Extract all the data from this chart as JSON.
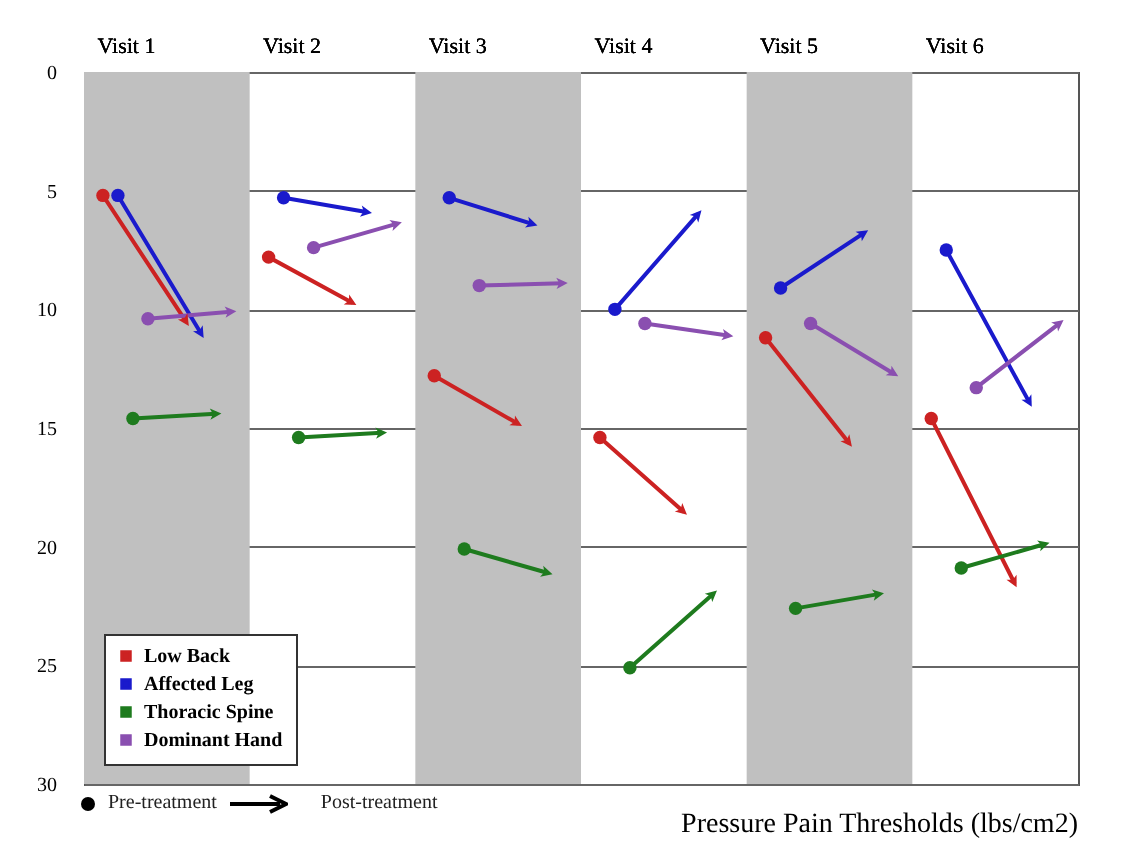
{
  "chart_data": {
    "type": "line",
    "xlabel": "Pressure Pain Thresholds (lbs/cm2)",
    "categories": [
      "Visit 1",
      null,
      "Visit 2",
      null,
      "Visit 3",
      null,
      "Visit 4",
      null,
      "Visit 5",
      null,
      "Visit 6",
      null
    ],
    "ylim": [
      30,
      0
    ],
    "yticks": [
      0,
      5,
      10,
      15,
      20,
      25,
      30
    ],
    "grid": "y",
    "legend": "bottom left",
    "marker": "circle",
    "line_style": "solid",
    "annotations": [
      "Pre-treatment",
      "Post-treatment"
    ],
    "series": [
      {
        "name": "Low Back",
        "color": "#cc2222",
        "values": [
          5.2,
          10.5,
          7.8,
          9.7,
          12.8,
          14.8,
          15.4,
          18.5,
          11.2,
          15.6,
          14.6,
          21.5
        ]
      },
      {
        "name": "Affected Leg",
        "color": "#1a1acc",
        "values": [
          5.2,
          11.0,
          5.3,
          5.9,
          5.3,
          6.4,
          10.0,
          6.0,
          9.1,
          6.8,
          7.5,
          13.9
        ]
      },
      {
        "name": "Thoracic Spine",
        "color": "#1e7b1e",
        "values": [
          14.6,
          14.4,
          15.4,
          15.2,
          20.1,
          21.1,
          25.1,
          22.0,
          22.6,
          22.0,
          20.9,
          19.9
        ]
      },
      {
        "name": "Dominant Hand",
        "color": "#8a4fb0",
        "values": [
          10.4,
          10.1,
          7.4,
          6.4,
          9.0,
          8.9,
          10.6,
          11.1,
          10.6,
          12.7,
          13.3,
          10.6
        ]
      }
    ]
  }
}
